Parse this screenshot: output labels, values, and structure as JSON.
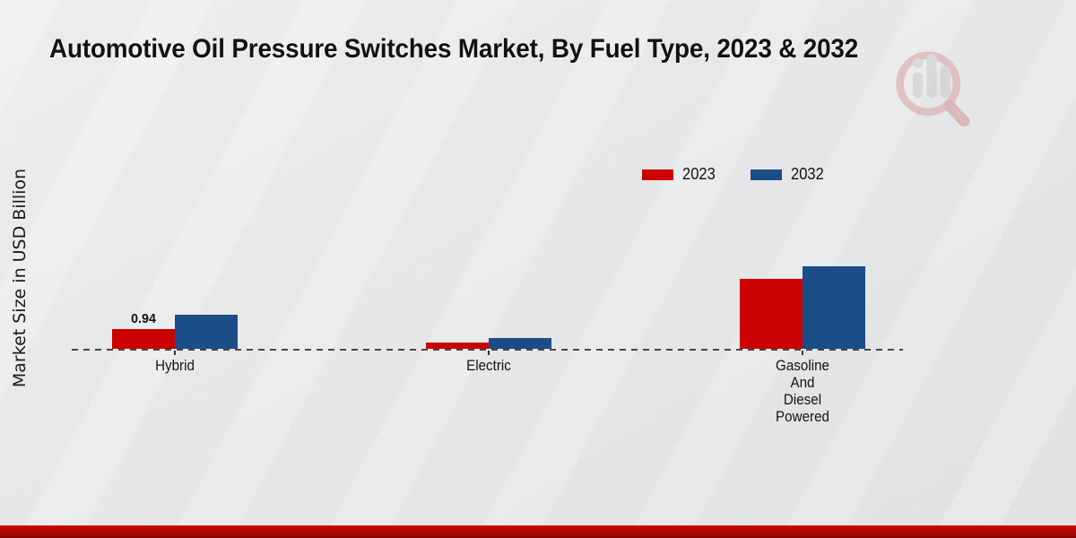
{
  "page": {
    "title": "Automotive Oil Pressure Switches Market, By Fuel Type, 2023 & 2032"
  },
  "ylabel": "Market Size in USD Billion",
  "legend": {
    "items": [
      {
        "label": "2023",
        "color": "#cc0101"
      },
      {
        "label": "2032",
        "color": "#1b4d87"
      }
    ]
  },
  "chart_data": {
    "type": "bar",
    "title": "Automotive Oil Pressure Switches Market, By Fuel Type, 2023 & 2032",
    "xlabel": "",
    "ylabel": "Market Size in USD Billion",
    "categories": [
      "Hybrid",
      "Electric",
      "Gasoline And Diesel Powered"
    ],
    "category_display": [
      "Hybrid",
      "Electric",
      "Gasoline\nAnd\nDiesel\nPowered"
    ],
    "series": [
      {
        "name": "2023",
        "color": "#cc0101",
        "values": [
          0.94,
          0.28,
          3.35
        ]
      },
      {
        "name": "2032",
        "color": "#1b4d87",
        "values": [
          1.62,
          0.51,
          3.95
        ]
      }
    ],
    "data_labels": [
      {
        "series": "2023",
        "category": "Hybrid",
        "text": "0.94"
      }
    ],
    "ylim": [
      0,
      4.5
    ],
    "grid": false,
    "y_axis_ticks_visible": false,
    "legend_position": "top-right",
    "baseline_style": "dashed"
  },
  "colors": {
    "accent_red": "#cc0101",
    "accent_blue": "#1b4d87",
    "footer_red": "#b30707",
    "background": "#e8e9eb"
  },
  "icons": {
    "watermark": "magnifier-bar-chart-watermark-icon"
  }
}
